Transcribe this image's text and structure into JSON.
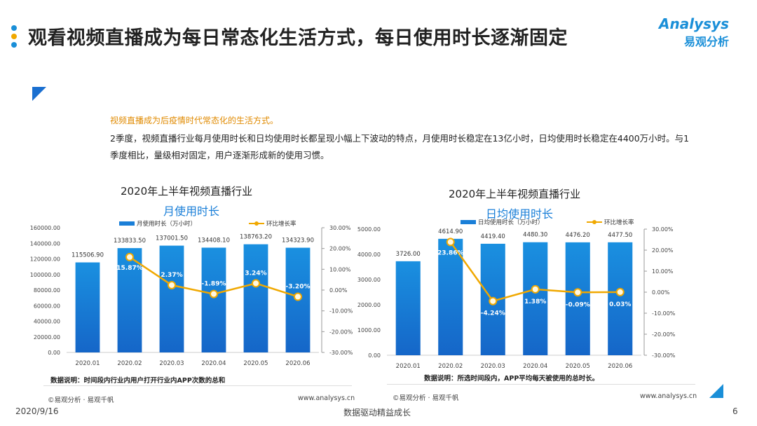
{
  "header": {
    "title": "观看视频直播成为每日常态化生活方式，每日使用时长逐渐固定",
    "logo_en": "Analysys",
    "logo_cn": "易观分析"
  },
  "intro": {
    "highlight": "视频直播成为后疫情时代常态化的生活方式。",
    "paragraph": "2季度，视频直播行业每月使用时长和日均使用时长都呈现小幅上下波动的特点，月使用时长稳定在13亿小时，日均使用时长稳定在4400万小时。与1季度相比，量级相对固定，用户逐渐形成新的使用习惯。"
  },
  "colors": {
    "bar": "#1a7fd8",
    "line": "#f0a800",
    "accent": "#1a6fd0"
  },
  "chart_data": [
    {
      "type": "bar+line",
      "title": "2020年上半年视频直播行业",
      "subtitle": "月使用时长",
      "categories": [
        "2020.01",
        "2020.02",
        "2020.03",
        "2020.04",
        "2020.05",
        "2020.06"
      ],
      "series": [
        {
          "name": "月使用时长（万小时）",
          "type": "bar",
          "axis": "left",
          "values": [
            115506.9,
            133833.5,
            137001.5,
            134408.1,
            138763.2,
            134323.9
          ],
          "labels": [
            "115506.90",
            "133833.50",
            "137001.50",
            "134408.10",
            "138763.20",
            "134323.90"
          ]
        },
        {
          "name": "环比增长率",
          "type": "line",
          "axis": "right",
          "values": [
            null,
            15.87,
            2.37,
            -1.89,
            3.24,
            -3.2
          ],
          "labels": [
            "",
            "15.87%",
            "2.37%",
            "-1.89%",
            "3.24%",
            "-3.20%"
          ]
        }
      ],
      "ylim": [
        0,
        160000
      ],
      "yticks": [
        "0.00",
        "20000.00",
        "40000.00",
        "60000.00",
        "80000.00",
        "100000.00",
        "120000.00",
        "140000.00",
        "160000.00"
      ],
      "y2lim": [
        -30,
        30
      ],
      "y2ticks": [
        "-30.00%",
        "-20.00%",
        "-10.00%",
        "0.00%",
        "10.00%",
        "20.00%",
        "30.00%"
      ],
      "legend": "top",
      "note": "数据说明：时间段内行业内用户打开行业内APP次数的总和",
      "source": "©易观分析 · 易观千帆",
      "url": "www.analysys.cn"
    },
    {
      "type": "bar+line",
      "title": "2020年上半年视频直播行业",
      "subtitle": "日均使用时长",
      "categories": [
        "2020.01",
        "2020.02",
        "2020.03",
        "2020.04",
        "2020.05",
        "2020.06"
      ],
      "series": [
        {
          "name": "日均使用时长（万小时）",
          "type": "bar",
          "axis": "left",
          "values": [
            3726.0,
            4614.9,
            4419.4,
            4480.3,
            4476.2,
            4477.5
          ],
          "labels": [
            "3726.00",
            "4614.90",
            "4419.40",
            "4480.30",
            "4476.20",
            "4477.50"
          ]
        },
        {
          "name": "环比增长率",
          "type": "line",
          "axis": "right",
          "values": [
            null,
            23.86,
            -4.24,
            1.38,
            -0.09,
            0.03
          ],
          "labels": [
            "",
            "23.86%",
            "-4.24%",
            "1.38%",
            "-0.09%",
            "0.03%"
          ]
        }
      ],
      "ylim": [
        0,
        5000
      ],
      "yticks": [
        "0.00",
        "1000.00",
        "2000.00",
        "3000.00",
        "4000.00",
        "5000.00"
      ],
      "y2lim": [
        -30,
        30
      ],
      "y2ticks": [
        "-30.00%",
        "-20.00%",
        "-10.00%",
        "0.00%",
        "10.00%",
        "20.00%",
        "30.00%"
      ],
      "legend": "top",
      "note": "数据说明：所选时间段内，APP平均每天被使用的总时长。",
      "source": "©易观分析 · 易观千帆",
      "url": "www.analysys.cn"
    }
  ],
  "footer": {
    "date": "2020/9/16",
    "slogan": "数据驱动精益成长",
    "page": "6"
  }
}
